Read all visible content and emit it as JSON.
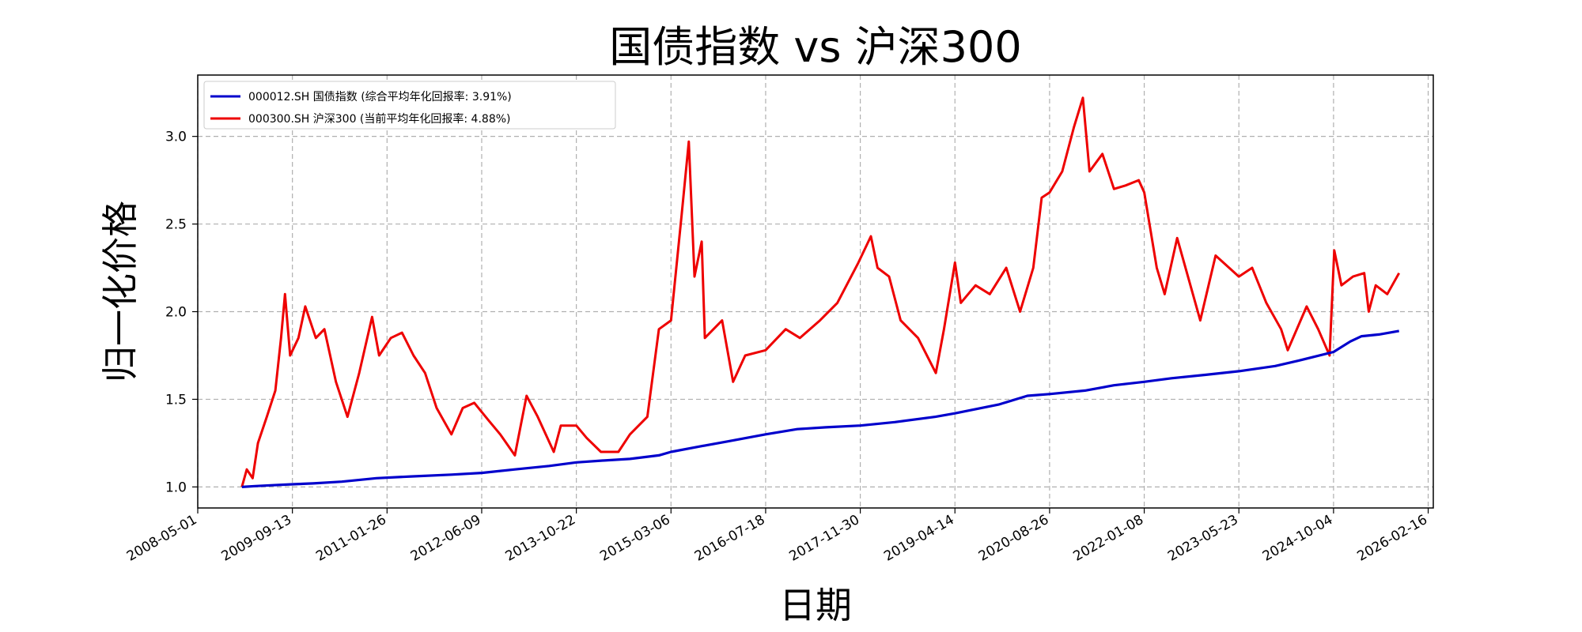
{
  "chart_data": {
    "type": "line",
    "title": "国债指数 vs 沪深300",
    "xlabel": "日期",
    "ylabel": "归一化价格",
    "x_ticks": [
      "2008-05-01",
      "2009-09-13",
      "2011-01-26",
      "2012-06-09",
      "2013-10-22",
      "2015-03-06",
      "2016-07-18",
      "2017-11-30",
      "2019-04-14",
      "2020-08-26",
      "2022-01-08",
      "2023-05-23",
      "2024-10-04",
      "2026-02-16"
    ],
    "y_ticks": [
      "1.0",
      "1.5",
      "2.0",
      "2.5",
      "3.0"
    ],
    "xlim": [
      "2008-05-01",
      "2026-03-15"
    ],
    "ylim": [
      0.88,
      3.35
    ],
    "grid": true,
    "legend_position": "top-left",
    "series": [
      {
        "name": "000012.SH 国债指数 (综合平均年化回报率: 3.91%)",
        "color": "#0000cc",
        "points": [
          [
            "2008-12-20",
            1.0
          ],
          [
            "2009-03-01",
            1.005
          ],
          [
            "2009-06-01",
            1.01
          ],
          [
            "2009-09-13",
            1.015
          ],
          [
            "2010-01-01",
            1.02
          ],
          [
            "2010-06-01",
            1.03
          ],
          [
            "2010-12-01",
            1.05
          ],
          [
            "2011-06-01",
            1.06
          ],
          [
            "2012-01-01",
            1.07
          ],
          [
            "2012-06-09",
            1.08
          ],
          [
            "2012-12-01",
            1.1
          ],
          [
            "2013-06-01",
            1.12
          ],
          [
            "2013-10-22",
            1.14
          ],
          [
            "2014-03-01",
            1.15
          ],
          [
            "2014-08-01",
            1.16
          ],
          [
            "2015-01-01",
            1.18
          ],
          [
            "2015-03-06",
            1.2
          ],
          [
            "2015-08-01",
            1.23
          ],
          [
            "2016-01-01",
            1.26
          ],
          [
            "2016-07-18",
            1.3
          ],
          [
            "2017-01-01",
            1.33
          ],
          [
            "2017-06-01",
            1.34
          ],
          [
            "2017-11-30",
            1.35
          ],
          [
            "2018-06-01",
            1.37
          ],
          [
            "2019-01-01",
            1.4
          ],
          [
            "2019-04-14",
            1.42
          ],
          [
            "2019-12-01",
            1.47
          ],
          [
            "2020-05-01",
            1.52
          ],
          [
            "2020-08-26",
            1.53
          ],
          [
            "2021-03-01",
            1.55
          ],
          [
            "2021-08-01",
            1.58
          ],
          [
            "2022-01-08",
            1.6
          ],
          [
            "2022-06-01",
            1.62
          ],
          [
            "2022-12-01",
            1.64
          ],
          [
            "2023-05-23",
            1.66
          ],
          [
            "2023-12-01",
            1.69
          ],
          [
            "2024-04-01",
            1.72
          ],
          [
            "2024-10-04",
            1.77
          ],
          [
            "2025-01-01",
            1.83
          ],
          [
            "2025-03-01",
            1.86
          ],
          [
            "2025-06-01",
            1.87
          ],
          [
            "2025-09-15",
            1.89
          ]
        ]
      },
      {
        "name": "000300.SH 沪深300 (当前平均年化回报率: 4.88%)",
        "color": "#ee0000",
        "points": [
          [
            "2008-12-20",
            1.0
          ],
          [
            "2009-01-15",
            1.1
          ],
          [
            "2009-02-15",
            1.05
          ],
          [
            "2009-03-15",
            1.25
          ],
          [
            "2009-05-01",
            1.4
          ],
          [
            "2009-06-15",
            1.55
          ],
          [
            "2009-07-15",
            1.85
          ],
          [
            "2009-08-05",
            2.1
          ],
          [
            "2009-09-01",
            1.75
          ],
          [
            "2009-10-15",
            1.85
          ],
          [
            "2009-11-20",
            2.03
          ],
          [
            "2010-01-15",
            1.85
          ],
          [
            "2010-03-01",
            1.9
          ],
          [
            "2010-05-01",
            1.6
          ],
          [
            "2010-07-01",
            1.4
          ],
          [
            "2010-09-01",
            1.65
          ],
          [
            "2010-11-08",
            1.97
          ],
          [
            "2010-12-15",
            1.75
          ],
          [
            "2011-02-15",
            1.85
          ],
          [
            "2011-04-15",
            1.88
          ],
          [
            "2011-06-15",
            1.75
          ],
          [
            "2011-08-15",
            1.65
          ],
          [
            "2011-10-15",
            1.45
          ],
          [
            "2012-01-01",
            1.3
          ],
          [
            "2012-03-01",
            1.45
          ],
          [
            "2012-05-01",
            1.48
          ],
          [
            "2012-07-15",
            1.38
          ],
          [
            "2012-09-15",
            1.3
          ],
          [
            "2012-12-01",
            1.18
          ],
          [
            "2013-02-01",
            1.52
          ],
          [
            "2013-04-01",
            1.4
          ],
          [
            "2013-06-25",
            1.2
          ],
          [
            "2013-08-01",
            1.35
          ],
          [
            "2013-10-22",
            1.35
          ],
          [
            "2013-12-15",
            1.28
          ],
          [
            "2014-03-01",
            1.2
          ],
          [
            "2014-06-01",
            1.2
          ],
          [
            "2014-08-01",
            1.3
          ],
          [
            "2014-11-01",
            1.4
          ],
          [
            "2015-01-01",
            1.9
          ],
          [
            "2015-03-06",
            1.95
          ],
          [
            "2015-05-01",
            2.55
          ],
          [
            "2015-06-08",
            2.97
          ],
          [
            "2015-07-08",
            2.2
          ],
          [
            "2015-08-15",
            2.4
          ],
          [
            "2015-09-01",
            1.85
          ],
          [
            "2015-12-01",
            1.95
          ],
          [
            "2016-01-28",
            1.6
          ],
          [
            "2016-04-01",
            1.75
          ],
          [
            "2016-07-18",
            1.78
          ],
          [
            "2016-11-01",
            1.9
          ],
          [
            "2017-01-15",
            1.85
          ],
          [
            "2017-05-01",
            1.95
          ],
          [
            "2017-08-01",
            2.05
          ],
          [
            "2017-11-20",
            2.28
          ],
          [
            "2018-01-25",
            2.43
          ],
          [
            "2018-03-01",
            2.25
          ],
          [
            "2018-05-01",
            2.2
          ],
          [
            "2018-07-01",
            1.95
          ],
          [
            "2018-10-01",
            1.85
          ],
          [
            "2019-01-03",
            1.65
          ],
          [
            "2019-02-15",
            1.9
          ],
          [
            "2019-04-14",
            2.28
          ],
          [
            "2019-05-15",
            2.05
          ],
          [
            "2019-08-01",
            2.15
          ],
          [
            "2019-10-15",
            2.1
          ],
          [
            "2020-01-10",
            2.25
          ],
          [
            "2020-03-23",
            2.0
          ],
          [
            "2020-06-01",
            2.25
          ],
          [
            "2020-07-15",
            2.65
          ],
          [
            "2020-08-26",
            2.68
          ],
          [
            "2020-11-01",
            2.8
          ],
          [
            "2021-01-01",
            3.05
          ],
          [
            "2021-02-18",
            3.22
          ],
          [
            "2021-03-25",
            2.8
          ],
          [
            "2021-06-01",
            2.9
          ],
          [
            "2021-08-01",
            2.7
          ],
          [
            "2021-10-01",
            2.72
          ],
          [
            "2021-12-10",
            2.75
          ],
          [
            "2022-01-08",
            2.68
          ],
          [
            "2022-03-15",
            2.25
          ],
          [
            "2022-04-26",
            2.1
          ],
          [
            "2022-07-01",
            2.42
          ],
          [
            "2022-10-31",
            1.95
          ],
          [
            "2023-01-20",
            2.32
          ],
          [
            "2023-05-23",
            2.2
          ],
          [
            "2023-08-01",
            2.25
          ],
          [
            "2023-10-15",
            2.05
          ],
          [
            "2024-01-01",
            1.9
          ],
          [
            "2024-02-05",
            1.78
          ],
          [
            "2024-05-15",
            2.03
          ],
          [
            "2024-07-15",
            1.9
          ],
          [
            "2024-09-13",
            1.75
          ],
          [
            "2024-10-08",
            2.35
          ],
          [
            "2024-11-15",
            2.15
          ],
          [
            "2025-01-15",
            2.2
          ],
          [
            "2025-03-15",
            2.22
          ],
          [
            "2025-04-08",
            2.0
          ],
          [
            "2025-05-15",
            2.15
          ],
          [
            "2025-07-15",
            2.1
          ],
          [
            "2025-09-15",
            2.22
          ]
        ]
      }
    ]
  }
}
